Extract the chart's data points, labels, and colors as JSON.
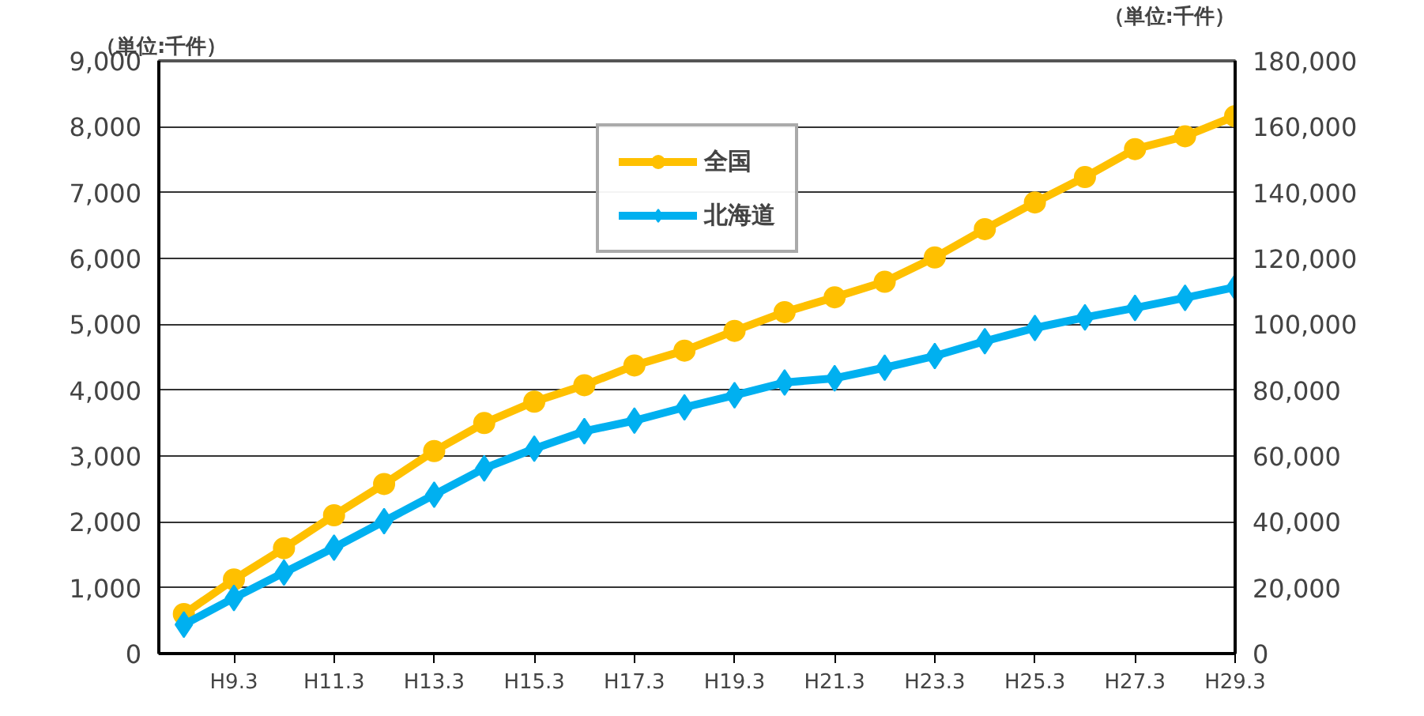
{
  "chart_data": {
    "type": "line",
    "ylabel": "（単位:千件）",
    "y2label": "（単位:千件）",
    "categories": [
      null,
      "H9.3",
      null,
      "H11.3",
      null,
      "H13.3",
      null,
      "H15.3",
      null,
      "H17.3",
      null,
      "H19.3",
      null,
      "H21.3",
      null,
      "H23.3",
      null,
      "H25.3",
      null,
      "H27.3",
      null,
      "H29.3"
    ],
    "series": [
      {
        "name": "全国",
        "color": "#ffc000",
        "axis": "y2",
        "marker": "circle",
        "values": [
          12000,
          22500,
          32000,
          42000,
          51500,
          61500,
          70000,
          76500,
          81500,
          87500,
          92000,
          98000,
          103700,
          108200,
          112900,
          120300,
          128900,
          137000,
          144700,
          153200,
          157100,
          163200
        ]
      },
      {
        "name": "北海道",
        "color": "#00b0f0",
        "marker": "diamond",
        "values": [
          440,
          845,
          1230,
          1608,
          2010,
          2412,
          2813,
          3111,
          3376,
          3537,
          3738,
          3923,
          4116,
          4180,
          4341,
          4518,
          4743,
          4944,
          5105,
          5249,
          5402,
          5563
        ]
      }
    ],
    "ylim": [
      0,
      9000
    ],
    "yticks": [
      {
        "value": 0,
        "label": "0"
      },
      {
        "value": 1000,
        "label": "1,000"
      },
      {
        "value": 2000,
        "label": "2,000"
      },
      {
        "value": 3000,
        "label": "3,000"
      },
      {
        "value": 4000,
        "label": "4,000"
      },
      {
        "value": 5000,
        "label": "5,000"
      },
      {
        "value": 6000,
        "label": "6,000"
      },
      {
        "value": 7000,
        "label": "7,000"
      },
      {
        "value": 8000,
        "label": "8,000"
      },
      {
        "value": 9000,
        "label": "9,000"
      }
    ],
    "y2lim": [
      0,
      180000
    ],
    "y2ticks": [
      {
        "value": 0,
        "label": "0"
      },
      {
        "value": 20000,
        "label": "20,000"
      },
      {
        "value": 40000,
        "label": "40,000"
      },
      {
        "value": 60000,
        "label": "60,000"
      },
      {
        "value": 80000,
        "label": "80,000"
      },
      {
        "value": 100000,
        "label": "100,000"
      },
      {
        "value": 120000,
        "label": "120,000"
      },
      {
        "value": 140000,
        "label": "140,000"
      },
      {
        "value": 160000,
        "label": "160,000"
      },
      {
        "value": 180000,
        "label": "180,000"
      }
    ],
    "grid": "y",
    "legend": "top",
    "line_style": "solid"
  }
}
